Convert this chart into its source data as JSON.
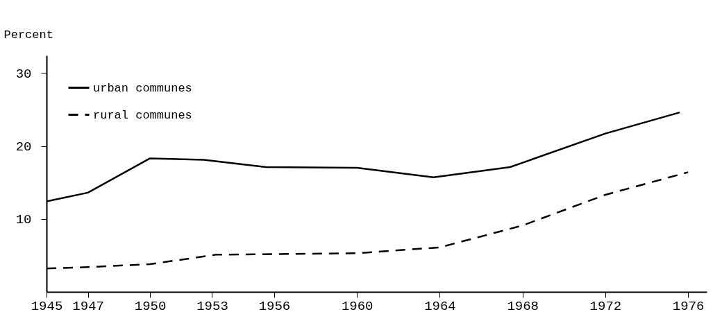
{
  "chart_data": {
    "type": "line",
    "ylabel": "Percent",
    "xlim": [
      1945,
      1976.9
    ],
    "xticks": [
      1945,
      1947,
      1950,
      1953,
      1956,
      1960,
      1964,
      1968,
      1972,
      1976
    ],
    "ylim": [
      0,
      32.4
    ],
    "yticks": [
      10,
      20,
      30
    ],
    "grid": false,
    "legend": "top left",
    "marker": "none",
    "series": [
      {
        "name": "urban communes",
        "color": "#000000",
        "line_style": "solid",
        "x": [
          1945,
          1947,
          1950,
          1952.6,
          1955.6,
          1960,
          1963.7,
          1967.4,
          1972,
          1975.6
        ],
        "values": [
          12.4,
          13.6,
          18.3,
          18.1,
          17.1,
          17.0,
          15.7,
          17.1,
          21.7,
          24.6
        ]
      },
      {
        "name": "rural communes",
        "color": "#000000",
        "line_style": "dashed",
        "x": [
          1945,
          1947,
          1950,
          1953.2,
          1960,
          1964,
          1968,
          1972,
          1976
        ],
        "values": [
          3.2,
          3.4,
          3.8,
          5.1,
          5.3,
          6.1,
          9.1,
          13.3,
          16.4
        ]
      }
    ]
  }
}
